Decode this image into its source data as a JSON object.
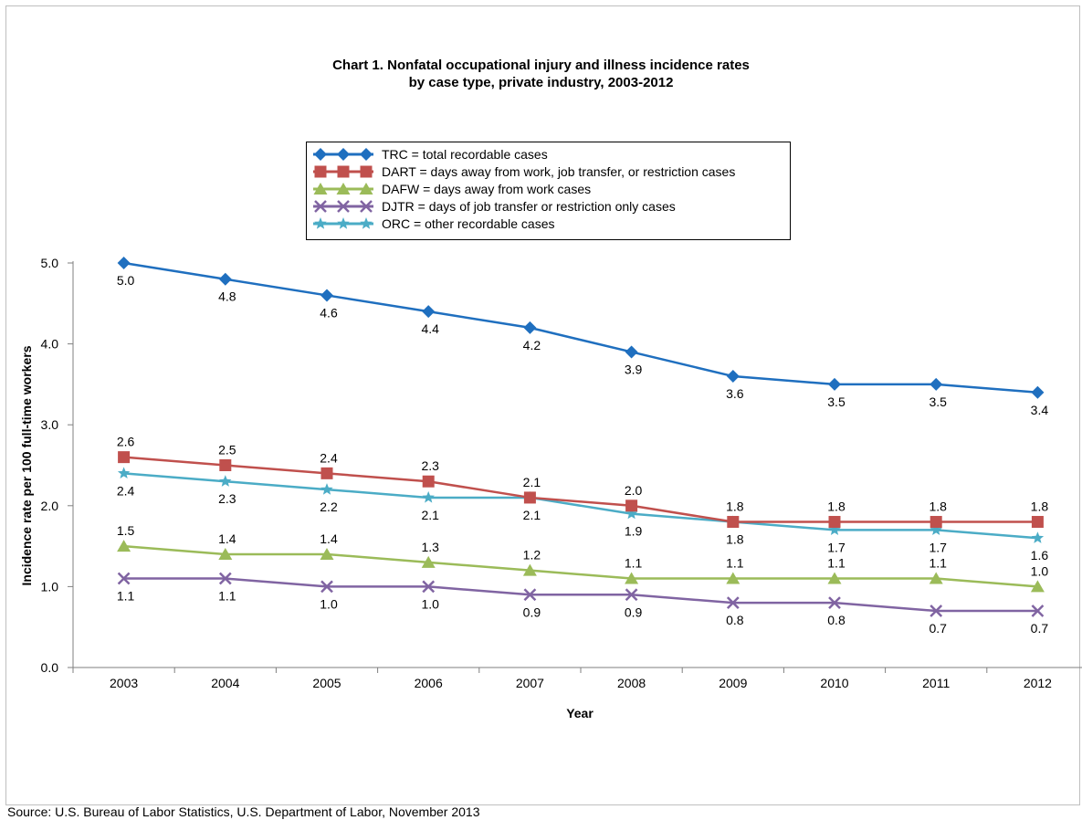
{
  "title_line1": "Chart 1. Nonfatal occupational injury and illness incidence rates",
  "title_line2": "by case type, private industry, 2003-2012",
  "source": "Source:  U.S. Bureau of Labor Statistics, U.S. Department of Labor, November 2013",
  "chart_data": {
    "type": "line",
    "title": "Chart 1. Nonfatal occupational injury and illness incidence rates by case type, private industry, 2003-2012",
    "xlabel": "Year",
    "ylabel": "Incidence rate per 100 full-time workers",
    "ylim": [
      0,
      5
    ],
    "yticks": [
      "0.0",
      "1.0",
      "2.0",
      "3.0",
      "4.0",
      "5.0"
    ],
    "categories": [
      "2003",
      "2004",
      "2005",
      "2006",
      "2007",
      "2008",
      "2009",
      "2010",
      "2011",
      "2012"
    ],
    "grid": false,
    "legend_position": "top-center",
    "series": [
      {
        "name": "TRC = total recordable cases",
        "key": "trc",
        "color": "#1f6fbf",
        "marker": "diamond",
        "values": [
          5.0,
          4.8,
          4.6,
          4.4,
          4.2,
          3.9,
          3.6,
          3.5,
          3.5,
          3.4
        ],
        "labels": [
          "5.0",
          "4.8",
          "4.6",
          "4.4",
          "4.2",
          "3.9",
          "3.6",
          "3.5",
          "3.5",
          "3.4"
        ]
      },
      {
        "name": "DART = days away from work, job transfer, or restriction cases",
        "key": "dart",
        "color": "#c0504d",
        "marker": "square",
        "values": [
          2.6,
          2.5,
          2.4,
          2.3,
          2.1,
          2.0,
          1.8,
          1.8,
          1.8,
          1.8
        ],
        "labels": [
          "2.6",
          "2.5",
          "2.4",
          "2.3",
          "2.1",
          "2.0",
          "1.8",
          "1.8",
          "1.8",
          "1.8"
        ]
      },
      {
        "name": "DAFW = days away from work cases",
        "key": "dafw",
        "color": "#9bbb59",
        "marker": "triangle",
        "values": [
          1.5,
          1.4,
          1.4,
          1.3,
          1.2,
          1.1,
          1.1,
          1.1,
          1.1,
          1.0
        ],
        "labels": [
          "1.5",
          "1.4",
          "1.4",
          "1.3",
          "1.2",
          "1.1",
          "1.1",
          "1.1",
          "1.1",
          "1.0"
        ]
      },
      {
        "name": "DJTR = days of job transfer or restriction only cases",
        "key": "djtr",
        "color": "#8064a2",
        "marker": "x",
        "values": [
          1.1,
          1.1,
          1.0,
          1.0,
          0.9,
          0.9,
          0.8,
          0.8,
          0.7,
          0.7
        ],
        "labels": [
          "1.1",
          "1.1",
          "1.0",
          "1.0",
          "0.9",
          "0.9",
          "0.8",
          "0.8",
          "0.7",
          "0.7"
        ]
      },
      {
        "name": "ORC = other recordable cases",
        "key": "orc",
        "color": "#4bacc6",
        "marker": "star",
        "values": [
          2.4,
          2.3,
          2.2,
          2.1,
          2.1,
          1.9,
          1.8,
          1.7,
          1.7,
          1.6
        ],
        "labels": [
          "2.4",
          "2.3",
          "2.2",
          "2.1",
          "2.1",
          "1.9",
          "1.8",
          "1.7",
          "1.7",
          "1.6"
        ]
      }
    ]
  }
}
